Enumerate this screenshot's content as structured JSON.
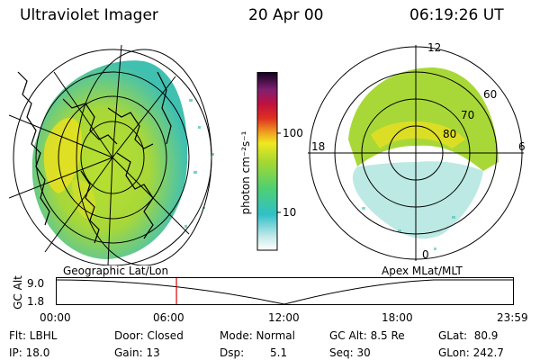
{
  "header": {
    "title": "Ultraviolet Imager",
    "date": "20 Apr 00",
    "time": "06:19:26 UT"
  },
  "colorbar": {
    "label": "photon cm⁻²s⁻¹",
    "ticks": [
      "100",
      "10"
    ],
    "scale": "log"
  },
  "polar_plot": {
    "mlt_labels": [
      "12",
      "18",
      "6",
      "0"
    ],
    "lat_labels": [
      "60",
      "70",
      "80"
    ]
  },
  "projection_labels": {
    "left": "Geographic Lat/Lon",
    "right": "Apex MLat/MLT"
  },
  "timeline": {
    "ylabel": "GC Alt",
    "y_max": "9.0",
    "y_min": "1.8",
    "x_ticks": [
      "00:00",
      "06:00",
      "12:00",
      "18:00",
      "23:59"
    ],
    "marker_time": "06:19"
  },
  "info": {
    "flt": "Flt: LBHL",
    "ip": "IP: 18.0",
    "door": "Door: Closed",
    "gain": "Gain: 13",
    "mode": "Mode: Normal",
    "dsp_label": "Dsp:",
    "dsp_value": "5.1",
    "gc_alt": "GC Alt: 8.5 Re",
    "seq": "Seq: 30",
    "glat": "GLat:  80.9",
    "glon": "GLon: 242.7"
  },
  "colors": {
    "marker": "#e00000",
    "aurora_main": "#a8d838",
    "aurora_bright": "#e8e020",
    "aurora_edge": "#40c0b0"
  }
}
